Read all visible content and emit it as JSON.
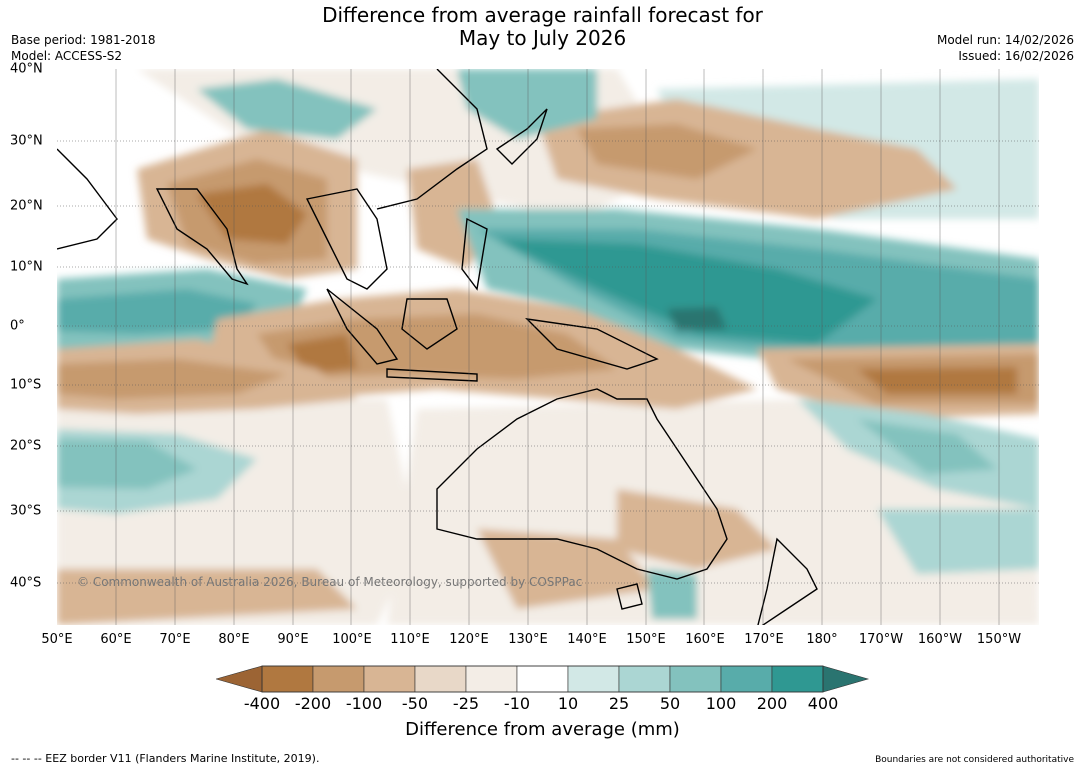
{
  "title": {
    "line1": "Difference from average rainfall forecast for",
    "line2": "May to July 2026"
  },
  "meta": {
    "base_period": "Base period: 1981-2018",
    "model": "Model: ACCESS-S2",
    "model_run": "Model run: 14/02/2026",
    "issued": "Issued: 16/02/2026"
  },
  "map": {
    "lat_labels": [
      "40°N",
      "30°N",
      "20°N",
      "10°N",
      "0°",
      "10°S",
      "20°S",
      "30°S",
      "40°S"
    ],
    "lon_labels": [
      "50°E",
      "60°E",
      "70°E",
      "80°E",
      "90°E",
      "100°E",
      "110°E",
      "120°E",
      "130°E",
      "140°E",
      "150°E",
      "160°E",
      "170°E",
      "180°",
      "170°W",
      "160°W",
      "150°W"
    ],
    "copyright": "© Commonwealth of Australia 2026, Bureau of Meteorology, supported by COSPPac",
    "colors": {
      "dry_extreme": "#9c6434",
      "dry_strong": "#b07840",
      "dry_mid": "#c69a6e",
      "dry_light": "#d8b594",
      "dry_faint": "#e8d8c8",
      "dry_min": "#f3ede6",
      "neutral": "#ffffff",
      "wet_min": "#d2e8e6",
      "wet_light": "#abd6d3",
      "wet_mid": "#83c2be",
      "wet_strong": "#58acaa",
      "wet_extreme": "#2f9892",
      "wet_max": "#2a7470"
    }
  },
  "colorbar": {
    "labels": [
      "-400",
      "-200",
      "-100",
      "-50",
      "-25",
      "-10",
      "10",
      "25",
      "50",
      "100",
      "200",
      "400"
    ],
    "colors": [
      "#b07840",
      "#c69a6e",
      "#d8b594",
      "#e8d8c8",
      "#f3ede6",
      "#ffffff",
      "#d2e8e6",
      "#abd6d3",
      "#83c2be",
      "#58acaa",
      "#2f9892"
    ],
    "low_extend_color": "#9c6434",
    "high_extend_color": "#2a7470",
    "title": "Difference from average (mm)"
  },
  "footer": {
    "eez_note": "--  --  -- EEZ border V11 (Flanders Marine Institute, 2019).",
    "disclaimer": "Boundaries are not considered authoritative"
  }
}
